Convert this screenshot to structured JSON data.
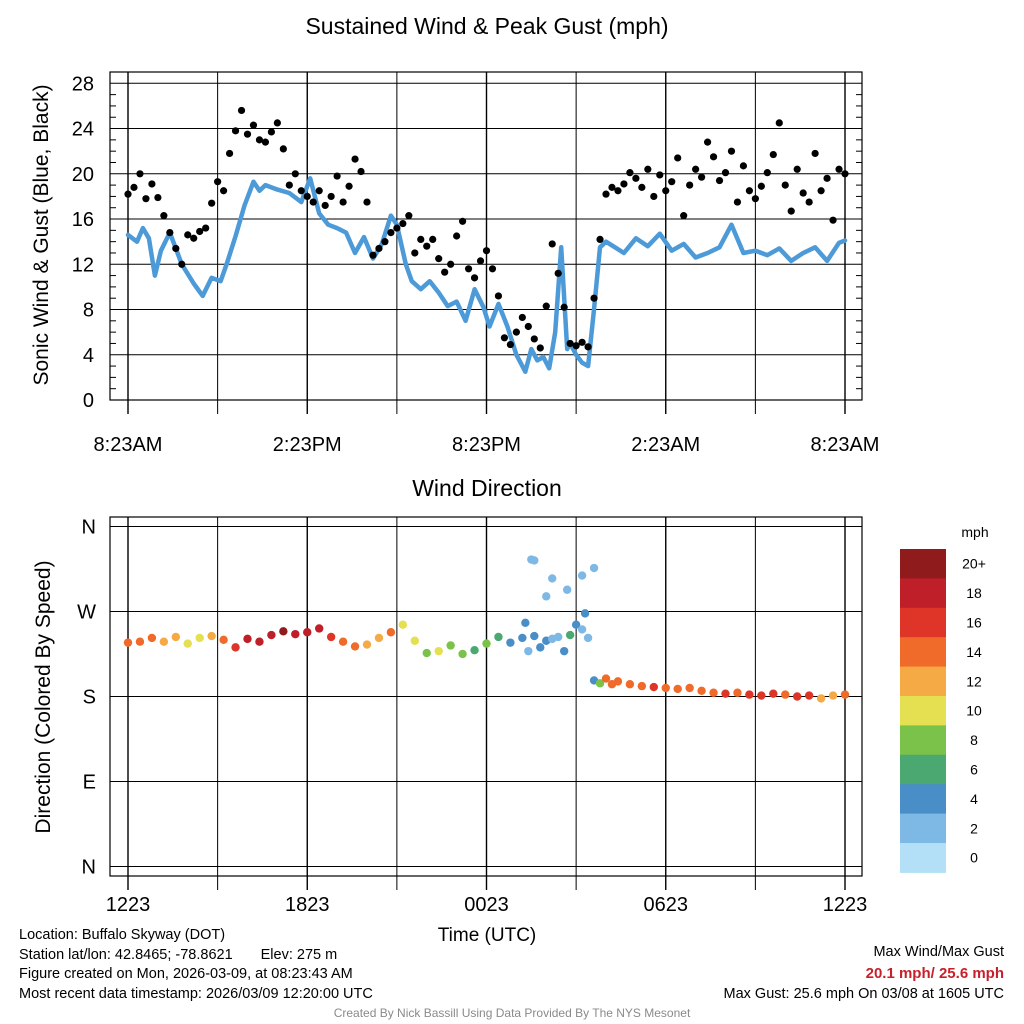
{
  "chart_data": [
    {
      "type": "line",
      "title": "Sustained Wind & Peak Gust (mph)",
      "ylabel": "Sonic Wind & Gust (Blue, Black)",
      "xlabel": "",
      "ylim": [
        0,
        29
      ],
      "yticks": [
        0,
        4,
        8,
        12,
        16,
        20,
        24,
        28
      ],
      "xlim": [
        0,
        24
      ],
      "xticks": [
        0,
        6,
        12,
        18,
        24
      ],
      "xticklabels": [
        "8:23AM",
        "2:23PM",
        "8:23PM",
        "2:23AM",
        "8:23AM"
      ],
      "grid_x": [
        3,
        9,
        15,
        21
      ],
      "series": [
        {
          "name": "Sustained Wind",
          "color": "#4d9ad8",
          "mark": "line",
          "x": [
            0,
            0.3,
            0.5,
            0.7,
            0.9,
            1.1,
            1.4,
            1.8,
            2.2,
            2.5,
            2.8,
            3.1,
            3.3,
            3.6,
            3.9,
            4.2,
            4.4,
            4.6,
            5.0,
            5.4,
            5.8,
            6.1,
            6.4,
            6.7,
            7.0,
            7.3,
            7.6,
            7.9,
            8.2,
            8.5,
            8.8,
            9.0,
            9.3,
            9.5,
            9.8,
            10.1,
            10.4,
            10.7,
            11.0,
            11.3,
            11.6,
            11.9,
            12.1,
            12.4,
            12.7,
            13.0,
            13.3,
            13.5,
            13.7,
            13.9,
            14.1,
            14.3,
            14.5,
            14.7,
            14.8,
            15.0,
            15.2,
            15.4,
            15.6,
            15.8,
            16.0,
            16.3,
            16.6,
            17.0,
            17.4,
            17.8,
            18.2,
            18.6,
            19.0,
            19.4,
            19.8,
            20.2,
            20.6,
            21.0,
            21.4,
            21.8,
            22.2,
            22.6,
            23.0,
            23.4,
            23.8,
            24.0
          ],
          "y": [
            14.6,
            14.0,
            15.2,
            14.3,
            11.0,
            13.2,
            14.8,
            12.0,
            10.3,
            9.2,
            10.8,
            10.5,
            12.0,
            14.5,
            17.2,
            19.3,
            18.5,
            19.0,
            18.6,
            18.3,
            17.5,
            19.6,
            16.5,
            15.5,
            15.2,
            14.8,
            13.0,
            14.4,
            12.5,
            13.8,
            16.3,
            15.5,
            12.0,
            10.5,
            9.8,
            10.5,
            9.5,
            8.3,
            8.7,
            7.0,
            9.8,
            8.2,
            6.5,
            8.5,
            6.5,
            4.0,
            2.5,
            4.5,
            3.5,
            3.8,
            2.8,
            6.0,
            13.5,
            4.5,
            5.0,
            4.0,
            3.3,
            3.0,
            8.0,
            13.5,
            14.0,
            13.5,
            13.0,
            14.3,
            13.6,
            14.7,
            13.2,
            13.8,
            12.6,
            13.0,
            13.5,
            15.5,
            13.0,
            13.2,
            12.8,
            13.4,
            12.3,
            13.0,
            13.5,
            12.3,
            13.9,
            14.1
          ]
        },
        {
          "name": "Peak Gust",
          "color": "#000000",
          "mark": "scatter",
          "x": [
            0,
            0.2,
            0.4,
            0.6,
            0.8,
            1.0,
            1.2,
            1.4,
            1.6,
            1.8,
            2.0,
            2.2,
            2.4,
            2.6,
            2.8,
            3.0,
            3.2,
            3.4,
            3.6,
            3.8,
            4.0,
            4.2,
            4.4,
            4.6,
            4.8,
            5.0,
            5.2,
            5.4,
            5.6,
            5.8,
            6.0,
            6.2,
            6.4,
            6.6,
            6.8,
            7.0,
            7.2,
            7.4,
            7.6,
            7.8,
            8.0,
            8.2,
            8.4,
            8.6,
            8.8,
            9.0,
            9.2,
            9.4,
            9.6,
            9.8,
            10.0,
            10.2,
            10.4,
            10.6,
            10.8,
            11.0,
            11.2,
            11.4,
            11.6,
            11.8,
            12.0,
            12.2,
            12.4,
            12.6,
            12.8,
            13.0,
            13.2,
            13.4,
            13.6,
            13.8,
            14.0,
            14.2,
            14.4,
            14.6,
            14.8,
            15.0,
            15.2,
            15.4,
            15.6,
            15.8,
            16.0,
            16.2,
            16.4,
            16.6,
            16.8,
            17.0,
            17.2,
            17.4,
            17.6,
            17.8,
            18.0,
            18.2,
            18.4,
            18.6,
            18.8,
            19.0,
            19.2,
            19.4,
            19.6,
            19.8,
            20.0,
            20.2,
            20.4,
            20.6,
            20.8,
            21.0,
            21.2,
            21.4,
            21.6,
            21.8,
            22.0,
            22.2,
            22.4,
            22.6,
            22.8,
            23.0,
            23.2,
            23.4,
            23.6,
            23.8,
            24.0
          ],
          "y": [
            18.2,
            18.8,
            20.0,
            17.8,
            19.1,
            17.9,
            16.3,
            14.8,
            13.4,
            12.0,
            14.6,
            14.3,
            14.9,
            15.2,
            17.4,
            19.3,
            18.5,
            21.8,
            23.8,
            25.6,
            23.5,
            24.3,
            23.0,
            22.8,
            23.7,
            24.5,
            22.2,
            19.0,
            20.0,
            18.5,
            18.0,
            17.5,
            18.5,
            17.2,
            18.0,
            19.8,
            17.5,
            18.9,
            21.3,
            20.2,
            17.5,
            12.8,
            13.4,
            14.0,
            14.8,
            15.2,
            15.6,
            16.3,
            13.0,
            14.2,
            13.6,
            14.2,
            12.5,
            11.3,
            12.0,
            14.5,
            15.8,
            11.6,
            10.8,
            12.3,
            13.2,
            11.6,
            9.2,
            5.5,
            4.9,
            6.0,
            7.3,
            6.5,
            5.4,
            4.6,
            8.3,
            13.8,
            11.2,
            8.2,
            5.0,
            4.8,
            5.1,
            4.7,
            9.0,
            14.2,
            18.2,
            18.8,
            18.5,
            19.1,
            20.1,
            19.6,
            18.8,
            20.4,
            18.0,
            19.9,
            18.5,
            19.3,
            21.4,
            16.3,
            19.0,
            20.4,
            19.7,
            22.8,
            21.5,
            19.4,
            20.1,
            22.0,
            17.5,
            20.7,
            18.5,
            17.8,
            18.9,
            20.1,
            21.7,
            24.5,
            19.0,
            16.7,
            20.4,
            18.3,
            17.5,
            21.8,
            18.5,
            19.6,
            15.9,
            20.4,
            20.0
          ]
        }
      ]
    },
    {
      "type": "scatter",
      "title": "Wind Direction",
      "xlabel": "Time (UTC)",
      "ylabel": "Direction (Colored By Speed)",
      "ylim": [
        -10,
        370
      ],
      "yticks": [
        0,
        90,
        180,
        270,
        360
      ],
      "yticklabels": [
        "N",
        "E",
        "S",
        "W",
        "N"
      ],
      "xlim": [
        0,
        24
      ],
      "xticks": [
        0,
        6,
        12,
        18,
        24
      ],
      "xticklabels": [
        "1223",
        "1823",
        "0023",
        "0623",
        "1223"
      ],
      "grid_x": [
        3,
        9,
        15,
        21
      ],
      "x": [
        0,
        0.4,
        0.8,
        1.2,
        1.6,
        2.0,
        2.4,
        2.8,
        3.2,
        3.6,
        4.0,
        4.4,
        4.8,
        5.2,
        5.6,
        6.0,
        6.4,
        6.8,
        7.2,
        7.6,
        8.0,
        8.4,
        8.8,
        9.2,
        9.6,
        10.0,
        10.4,
        10.8,
        11.2,
        11.6,
        12.0,
        12.4,
        12.8,
        13.2,
        13.4,
        13.6,
        13.8,
        14.0,
        14.2,
        14.4,
        14.6,
        14.8,
        15.0,
        15.2,
        15.4,
        15.6,
        15.8,
        16.0,
        16.2,
        16.4,
        16.8,
        17.2,
        17.6,
        18.0,
        18.4,
        18.8,
        19.2,
        19.6,
        20.0,
        20.4,
        20.8,
        21.2,
        21.6,
        22.0,
        22.4,
        22.8,
        23.2,
        23.6,
        24.0,
        13.5,
        13.6,
        14.2,
        14.7,
        15.2,
        15.6,
        13.3,
        14.0,
        15.3
      ],
      "y": [
        237,
        238,
        242,
        238,
        243,
        236,
        242,
        244,
        240,
        232,
        241,
        238,
        245,
        249,
        246,
        248,
        252,
        243,
        238,
        233,
        235,
        242,
        248,
        256,
        239,
        226,
        228,
        234,
        225,
        229,
        236,
        243,
        237,
        242,
        228,
        244,
        232,
        239,
        241,
        243,
        228,
        245,
        256,
        251,
        242,
        197,
        194,
        199,
        193,
        196,
        193,
        191,
        190,
        189,
        188,
        189,
        186,
        184,
        183,
        184,
        182,
        181,
        183,
        182,
        180,
        181,
        178,
        181,
        182,
        325,
        324,
        305,
        293,
        308,
        316,
        258,
        286,
        268
      ],
      "speed": [
        15,
        15,
        14,
        13,
        12,
        11,
        10,
        13,
        14,
        17,
        18,
        18,
        19,
        20,
        19,
        19,
        19,
        16,
        15,
        14,
        13,
        12,
        15,
        11,
        10,
        9,
        10,
        8,
        9,
        7,
        8,
        6,
        4,
        4,
        3,
        4,
        5,
        4,
        3,
        3,
        5,
        6,
        4,
        3,
        3,
        5,
        8,
        15,
        14,
        15,
        14,
        15,
        16,
        15,
        15,
        14,
        14,
        15,
        16,
        14,
        17,
        16,
        16,
        15,
        17,
        16,
        13,
        13,
        15,
        2,
        2,
        2,
        2,
        2,
        2,
        4,
        3,
        4
      ],
      "colorbar": {
        "title": "mph",
        "levels": [
          "0",
          "2",
          "4",
          "6",
          "8",
          "10",
          "12",
          "14",
          "16",
          "18",
          "20+"
        ],
        "colors": [
          "#b3e0f6",
          "#7eb8e5",
          "#4a8ec8",
          "#4aa870",
          "#7bc24a",
          "#e4e052",
          "#f5aa45",
          "#f06a2a",
          "#de3528",
          "#bf1f28",
          "#8f1b1c"
        ]
      }
    }
  ],
  "footer": {
    "location": "Location: Buffalo Skyway (DOT)",
    "latlon": "Station lat/lon: 42.8465; -78.8621",
    "elev": "Elev: 275 m",
    "created": "Figure created on Mon, 2026-03-09, at 08:23:43 AM",
    "recent": "Most recent data timestamp: 2026/03/09 12:20:00 UTC",
    "max_label": "Max Wind/Max Gust",
    "max_values": "20.1 mph/ 25.6 mph",
    "max_gust": "Max Gust: 25.6 mph On 03/08 at 1605 UTC",
    "credit": "Created By Nick Bassill Using Data Provided By The NYS Mesonet"
  }
}
